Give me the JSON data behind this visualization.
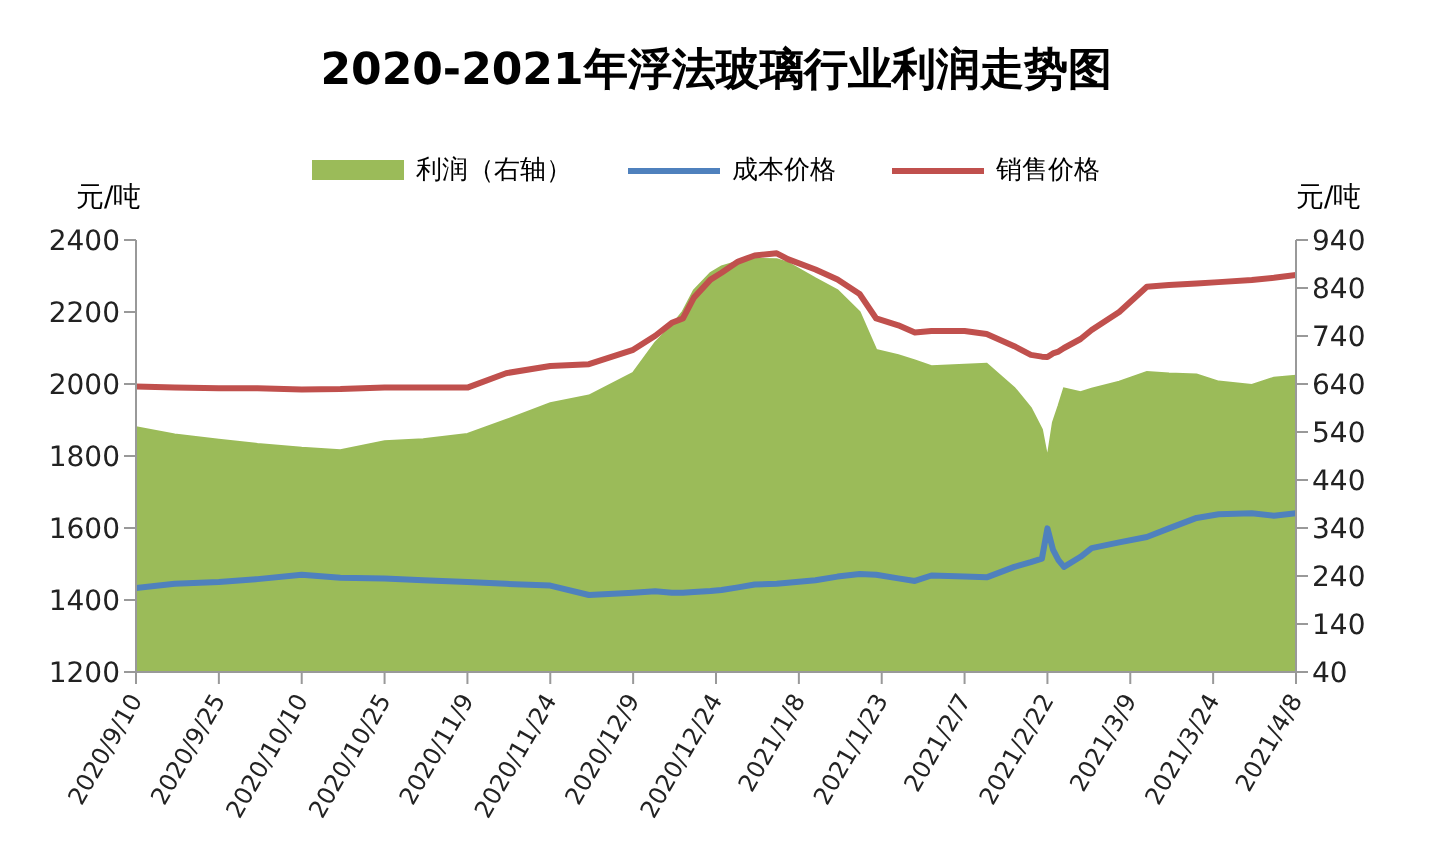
{
  "chart_data": {
    "type": "line",
    "title": "2020-2021年浮法玻璃行业利润走势图",
    "ylabel": "元/吨",
    "y2label": "元/吨",
    "legend": "top",
    "marker": "none",
    "line_style": "solid",
    "x": [
      "2020-09-10",
      "2020-09-17",
      "2020-09-25",
      "2020-10-02",
      "2020-10-10",
      "2020-10-17",
      "2020-10-25",
      "2020-11-01",
      "2020-11-09",
      "2020-11-16",
      "2020-11-24",
      "2020-12-01",
      "2020-12-09",
      "2020-12-13",
      "2020-12-16",
      "2020-12-18",
      "2020-12-20",
      "2020-12-23",
      "2020-12-25",
      "2020-12-28",
      "2020-12-31",
      "2021-01-04",
      "2021-01-06",
      "2021-01-11",
      "2021-01-15",
      "2021-01-19",
      "2021-01-22",
      "2021-01-26",
      "2021-01-29",
      "2021-02-01",
      "2021-02-07",
      "2021-02-11",
      "2021-02-16",
      "2021-02-19",
      "2021-02-21",
      "2021-02-22",
      "2021-02-23",
      "2021-02-24",
      "2021-02-25",
      "2021-02-28",
      "2021-03-02",
      "2021-03-07",
      "2021-03-12",
      "2021-03-16",
      "2021-03-21",
      "2021-03-25",
      "2021-03-31",
      "2021-04-04",
      "2021-04-08"
    ],
    "series": [
      {
        "name": "利润（右轴）",
        "type": "area",
        "axis": "y2",
        "color": "#9bbb59",
        "values": [
          550,
          535,
          524,
          515,
          507,
          502,
          521,
          525,
          536,
          565,
          600,
          616,
          663,
          726,
          762,
          791,
          835,
          871,
          885,
          895,
          901,
          900,
          893,
          860,
          835,
          790,
          711,
          700,
          689,
          677,
          680,
          682,
          632,
          590,
          545,
          485,
          560,
          594,
          631,
          623,
          630,
          645,
          665,
          662,
          660,
          645,
          638,
          653,
          657
        ]
      },
      {
        "name": "成本价格",
        "color": "#4f81bd",
        "values": [
          1433,
          1445,
          1450,
          1458,
          1470,
          1462,
          1460,
          1455,
          1450,
          1445,
          1440,
          1414,
          1420,
          1424,
          1420,
          1420,
          1422,
          1425,
          1428,
          1435,
          1443,
          1445,
          1448,
          1455,
          1465,
          1472,
          1470,
          1460,
          1453,
          1468,
          1465,
          1463,
          1492,
          1505,
          1515,
          1599,
          1540,
          1511,
          1492,
          1520,
          1544,
          1560,
          1575,
          1599,
          1628,
          1638,
          1641,
          1634,
          1641
        ]
      },
      {
        "name": "销售价格",
        "color": "#c0504d",
        "values": [
          1993,
          1990,
          1988,
          1988,
          1985,
          1986,
          1990,
          1990,
          1990,
          2030,
          2050,
          2055,
          2095,
          2134,
          2170,
          2182,
          2240,
          2290,
          2309,
          2340,
          2357,
          2363,
          2347,
          2318,
          2290,
          2250,
          2182,
          2163,
          2143,
          2147,
          2147,
          2139,
          2105,
          2081,
          2076,
          2075,
          2085,
          2090,
          2100,
          2125,
          2150,
          2200,
          2270,
          2275,
          2279,
          2283,
          2289,
          2295,
          2303
        ]
      }
    ],
    "xlim": [
      "2020-09-10",
      "2021-04-08"
    ],
    "xticks": [
      {
        "value": "2020-09-10",
        "label": "2020/9/10"
      },
      {
        "value": "2020-09-25",
        "label": "2020/9/25"
      },
      {
        "value": "2020-10-10",
        "label": "2020/10/10"
      },
      {
        "value": "2020-10-25",
        "label": "2020/10/25"
      },
      {
        "value": "2020-11-09",
        "label": "2020/11/9"
      },
      {
        "value": "2020-11-24",
        "label": "2020/11/24"
      },
      {
        "value": "2020-12-09",
        "label": "2020/12/9"
      },
      {
        "value": "2020-12-24",
        "label": "2020/12/24"
      },
      {
        "value": "2021-01-08",
        "label": "2021/1/8"
      },
      {
        "value": "2021-01-23",
        "label": "2021/1/23"
      },
      {
        "value": "2021-02-07",
        "label": "2021/2/7"
      },
      {
        "value": "2021-02-22",
        "label": "2021/2/22"
      },
      {
        "value": "2021-03-09",
        "label": "2021/3/9"
      },
      {
        "value": "2021-03-24",
        "label": "2021/3/24"
      },
      {
        "value": "2021-04-08",
        "label": "2021/4/8"
      }
    ],
    "ylim": [
      1200,
      2400
    ],
    "yticks": [
      1200,
      1400,
      1600,
      1800,
      2000,
      2200,
      2400
    ],
    "y2lim": [
      40,
      940
    ],
    "y2ticks": [
      40,
      140,
      240,
      340,
      440,
      540,
      640,
      740,
      840,
      940
    ]
  }
}
